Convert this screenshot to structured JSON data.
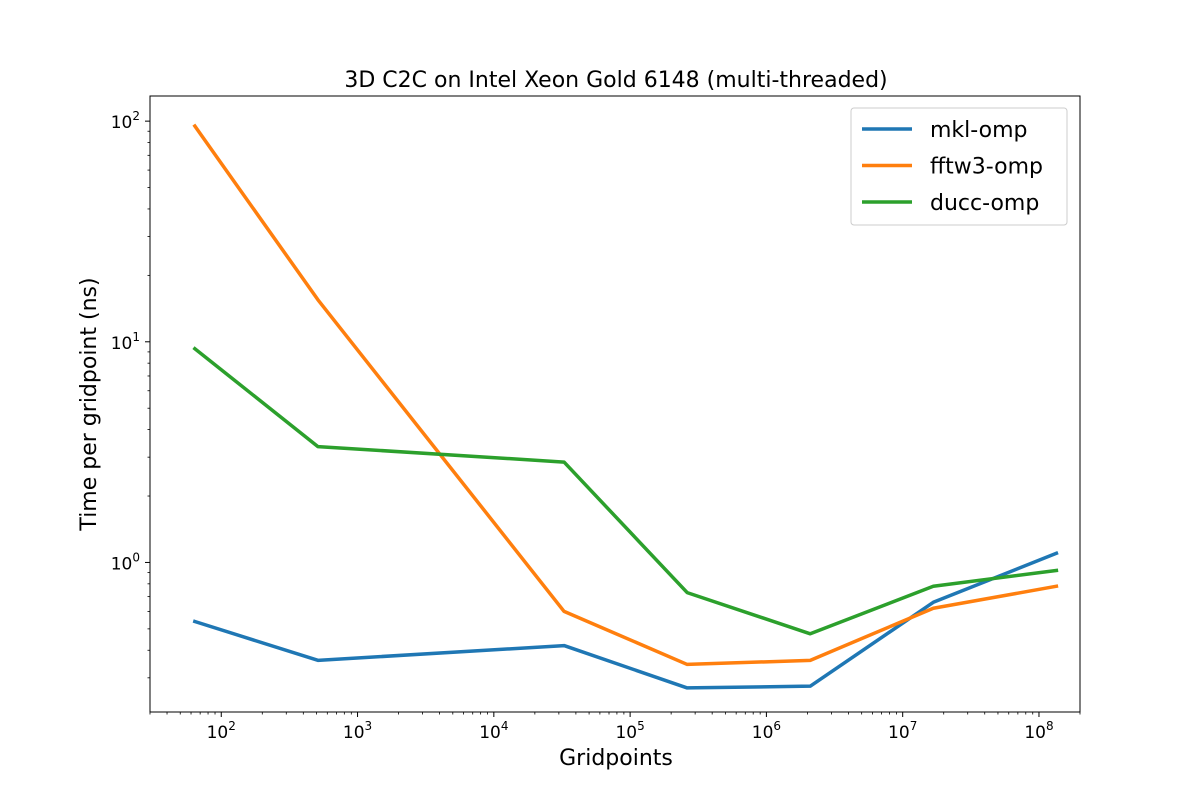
{
  "chart_data": {
    "type": "line",
    "title": "3D C2C on Intel Xeon Gold 6148 (multi-threaded)",
    "xlabel": "Gridpoints",
    "ylabel": "Time per gridpoint (ns)",
    "xscale": "log",
    "yscale": "log",
    "xlim": [
      30,
      200000000
    ],
    "ylim": [
      0.21,
      130
    ],
    "grid": false,
    "legend_position": "top-right",
    "x": [
      64,
      512,
      32768,
      262144,
      2097152,
      16777216,
      134217728
    ],
    "x_ticks": [
      {
        "base": "10",
        "exp": "2",
        "value": 100
      },
      {
        "base": "10",
        "exp": "3",
        "value": 1000
      },
      {
        "base": "10",
        "exp": "4",
        "value": 10000
      },
      {
        "base": "10",
        "exp": "5",
        "value": 100000
      },
      {
        "base": "10",
        "exp": "6",
        "value": 1000000
      },
      {
        "base": "10",
        "exp": "7",
        "value": 10000000
      },
      {
        "base": "10",
        "exp": "8",
        "value": 100000000
      }
    ],
    "y_ticks": [
      {
        "base": "10",
        "exp": "0",
        "value": 1
      },
      {
        "base": "10",
        "exp": "1",
        "value": 10
      },
      {
        "base": "10",
        "exp": "2",
        "value": 100
      }
    ],
    "series": [
      {
        "name": "mkl-omp",
        "color": "#1f77b4",
        "values": [
          0.54,
          0.36,
          0.42,
          0.27,
          0.275,
          0.66,
          1.1
        ]
      },
      {
        "name": "fftw3-omp",
        "color": "#ff7f0e",
        "values": [
          95,
          15.5,
          0.6,
          0.345,
          0.36,
          0.62,
          0.78
        ]
      },
      {
        "name": "ducc-omp",
        "color": "#2ca02c",
        "values": [
          9.3,
          3.35,
          2.85,
          0.73,
          0.475,
          0.78,
          0.92
        ]
      }
    ]
  }
}
